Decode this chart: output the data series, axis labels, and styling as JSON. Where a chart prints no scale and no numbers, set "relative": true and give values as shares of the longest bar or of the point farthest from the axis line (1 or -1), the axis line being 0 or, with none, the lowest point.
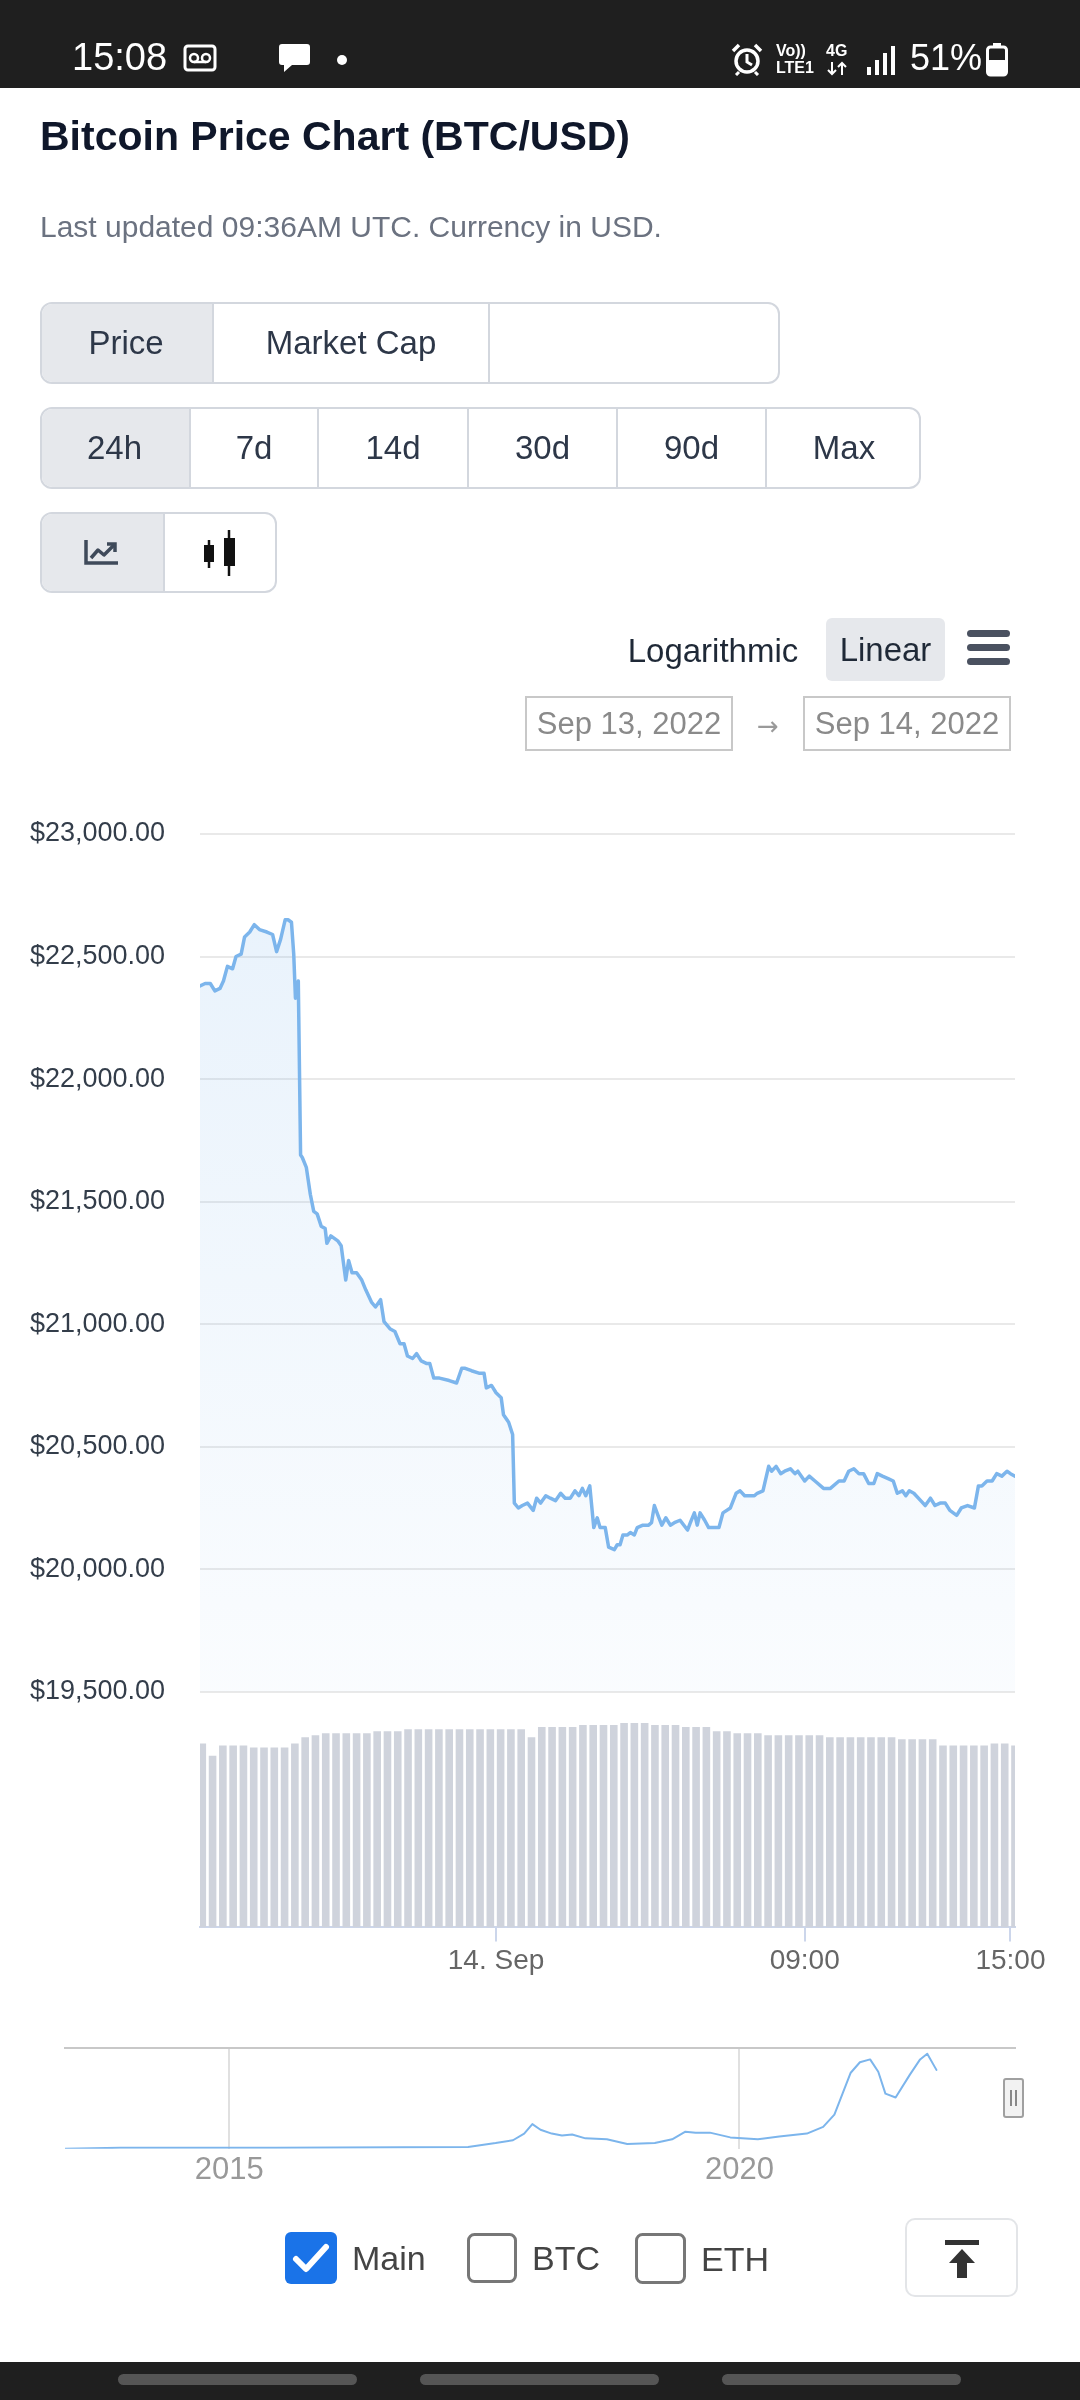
{
  "chart_data": [
    {
      "type": "other",
      "annotations": [
        "15:08",
        "Vo))",
        "LTE1",
        "4G",
        "51%"
      ]
    },
    {
      "type": "area",
      "title": "Bitcoin Price Chart (BTC/USD)",
      "subtitle": "Last updated 09:36AM UTC. Currency in USD.",
      "annotations": [
        "Price",
        "Market Cap",
        "24h",
        "7d",
        "14d",
        "30d",
        "90d",
        "Max",
        "Logarithmic",
        "Linear",
        "Sep 13, 2022",
        "→",
        "Sep 14, 2022"
      ],
      "x": [
        "2022-09-13T15:22",
        "2022-09-13T15:31",
        "2022-09-13T15:40",
        "2022-09-13T15:48",
        "2022-09-13T15:57",
        "2022-09-13T16:03",
        "2022-09-13T16:10",
        "2022-09-13T16:19",
        "2022-09-13T16:25",
        "2022-09-13T16:34",
        "2022-09-13T16:40",
        "2022-09-13T16:49",
        "2022-09-13T16:57",
        "2022-09-13T17:06",
        "2022-09-13T17:19",
        "2022-09-13T17:29",
        "2022-09-13T17:36",
        "2022-09-13T17:43",
        "2022-09-13T17:51",
        "2022-09-13T17:56",
        "2022-09-13T18:02",
        "2022-09-13T18:06",
        "2022-09-13T18:09",
        "2022-09-13T18:14",
        "2022-09-13T18:18",
        "2022-09-13T18:21",
        "2022-09-13T18:28",
        "2022-09-13T18:35",
        "2022-09-13T18:41",
        "2022-09-13T18:47",
        "2022-09-13T18:54",
        "2022-09-13T19:01",
        "2022-09-13T19:04",
        "2022-09-13T19:11",
        "2022-09-13T19:23",
        "2022-09-13T19:29",
        "2022-09-13T19:37",
        "2022-09-13T19:42",
        "2022-09-13T19:48",
        "2022-09-13T19:56",
        "2022-09-13T20:05",
        "2022-09-13T20:12",
        "2022-09-13T20:22",
        "2022-09-13T20:29",
        "2022-09-13T20:38",
        "2022-09-13T20:44",
        "2022-09-13T20:55",
        "2022-09-13T21:03",
        "2022-09-13T21:12",
        "2022-09-13T21:19",
        "2022-09-13T21:25",
        "2022-09-13T21:34",
        "2022-09-13T21:41",
        "2022-09-13T21:49",
        "2022-09-13T21:58",
        "2022-09-13T22:04",
        "2022-09-13T22:11",
        "2022-09-13T22:21",
        "2022-09-13T22:38",
        "2022-09-13T22:51",
        "2022-09-13T23:00",
        "2022-09-13T23:06",
        "2022-09-13T23:17",
        "2022-09-13T23:30",
        "2022-09-13T23:39",
        "2022-09-13T23:43",
        "2022-09-13T23:52",
        "2022-09-14T00:00",
        "2022-09-14T00:09",
        "2022-09-14T00:13",
        "2022-09-14T00:22",
        "2022-09-14T00:29",
        "2022-09-14T00:32",
        "2022-09-14T00:39",
        "2022-09-14T00:46",
        "2022-09-14T00:55",
        "2022-09-14T01:05",
        "2022-09-14T01:11",
        "2022-09-14T01:18",
        "2022-09-14T01:27",
        "2022-09-14T01:35",
        "2022-09-14T01:44",
        "2022-09-14T01:53",
        "2022-09-14T02:01",
        "2022-09-14T02:10",
        "2022-09-14T02:18",
        "2022-09-14T02:25",
        "2022-09-14T02:31",
        "2022-09-14T02:37",
        "2022-09-14T02:44",
        "2022-09-14T02:51",
        "2022-09-14T02:57",
        "2022-09-14T03:02",
        "2022-09-14T03:11",
        "2022-09-14T03:17",
        "2022-09-14T03:27",
        "2022-09-14T03:32",
        "2022-09-14T03:37",
        "2022-09-14T03:42",
        "2022-09-14T03:50",
        "2022-09-14T03:55",
        "2022-09-14T04:02",
        "2022-09-14T04:07",
        "2022-09-14T04:17",
        "2022-09-14T04:27",
        "2022-09-14T04:32",
        "2022-09-14T04:37",
        "2022-09-14T04:45",
        "2022-09-14T04:50",
        "2022-09-14T04:57",
        "2022-09-14T05:05",
        "2022-09-14T05:12",
        "2022-09-14T05:22",
        "2022-09-14T05:35",
        "2022-09-14T05:40",
        "2022-09-14T05:47",
        "2022-09-14T05:52",
        "2022-09-14T05:57",
        "2022-09-14T06:05",
        "2022-09-14T06:12",
        "2022-09-14T06:30",
        "2022-09-14T06:37",
        "2022-09-14T06:50",
        "2022-09-14T07:00",
        "2022-09-14T07:07",
        "2022-09-14T07:15",
        "2022-09-14T07:32",
        "2022-09-14T07:37",
        "2022-09-14T07:47",
        "2022-09-14T07:57",
        "2022-09-14T08:02",
        "2022-09-14T08:10",
        "2022-09-14T08:18",
        "2022-09-14T08:25",
        "2022-09-14T08:35",
        "2022-09-14T08:43",
        "2022-09-14T08:48",
        "2022-09-14T09:00",
        "2022-09-14T09:08",
        "2022-09-14T09:18",
        "2022-09-14T09:33",
        "2022-09-14T09:45",
        "2022-09-14T10:00",
        "2022-09-14T10:09",
        "2022-09-14T10:17",
        "2022-09-14T10:26",
        "2022-09-14T10:35",
        "2022-09-14T10:43",
        "2022-09-14T10:52",
        "2022-09-14T11:01",
        "2022-09-14T11:07",
        "2022-09-14T11:16",
        "2022-09-14T11:26",
        "2022-09-14T11:35",
        "2022-09-14T11:42",
        "2022-09-14T11:51",
        "2022-09-14T11:57",
        "2022-09-14T12:03",
        "2022-09-14T12:11",
        "2022-09-14T12:23",
        "2022-09-14T12:31",
        "2022-09-14T12:40",
        "2022-09-14T12:48",
        "2022-09-14T12:57",
        "2022-09-14T13:06",
        "2022-09-14T13:14",
        "2022-09-14T13:26",
        "2022-09-14T13:34",
        "2022-09-14T13:45",
        "2022-09-14T13:57",
        "2022-09-14T14:04",
        "2022-09-14T14:10",
        "2022-09-14T14:19",
        "2022-09-14T14:28",
        "2022-09-14T14:36",
        "2022-09-14T14:45",
        "2022-09-14T14:54",
        "2022-09-14T15:00",
        "2022-09-14T15:08"
      ],
      "values": [
        22380,
        22390,
        22390,
        22360,
        22370,
        22400,
        22460,
        22450,
        22500,
        22510,
        22580,
        22600,
        22630,
        22610,
        22600,
        22590,
        22520,
        22570,
        22650,
        22650,
        22640,
        22510,
        22330,
        22400,
        21690,
        21680,
        21640,
        21530,
        21460,
        21450,
        21400,
        21390,
        21330,
        21360,
        21340,
        21320,
        21180,
        21260,
        21210,
        21210,
        21180,
        21140,
        21090,
        21070,
        21100,
        21010,
        20980,
        20970,
        20920,
        20920,
        20870,
        20860,
        20880,
        20850,
        20840,
        20840,
        20780,
        20780,
        20770,
        20760,
        20820,
        20820,
        20810,
        20800,
        20800,
        20740,
        20750,
        20720,
        20700,
        20630,
        20600,
        20550,
        20270,
        20250,
        20260,
        20270,
        20240,
        20290,
        20270,
        20300,
        20290,
        20280,
        20310,
        20290,
        20290,
        20320,
        20300,
        20330,
        20300,
        20340,
        20170,
        20210,
        20170,
        20170,
        20090,
        20080,
        20100,
        20100,
        20140,
        20140,
        20150,
        20140,
        20170,
        20180,
        20180,
        20190,
        20260,
        20210,
        20180,
        20210,
        20180,
        20190,
        20200,
        20160,
        20190,
        20230,
        20180,
        20230,
        20200,
        20170,
        20170,
        20230,
        20250,
        20310,
        20320,
        20300,
        20300,
        20310,
        20320,
        20420,
        20400,
        20420,
        20390,
        20400,
        20410,
        20390,
        20400,
        20360,
        20380,
        20360,
        20330,
        20330,
        20360,
        20360,
        20400,
        20410,
        20390,
        20390,
        20350,
        20350,
        20390,
        20380,
        20370,
        20360,
        20310,
        20320,
        20300,
        20320,
        20310,
        20280,
        20260,
        20290,
        20260,
        20270,
        20270,
        20240,
        20220,
        20250,
        20260,
        20250,
        20340,
        20340,
        20360,
        20360,
        20390,
        20380,
        20400,
        20390,
        20380
      ],
      "color": "#7cb5ec",
      "xlim": [
        "2022-09-13T15:22",
        "2022-09-14T15:08"
      ],
      "ylim": [
        19500,
        23000
      ],
      "yticks": [
        {
          "value": 19500,
          "label": "$19,500.00"
        },
        {
          "value": 20000,
          "label": "$20,000.00"
        },
        {
          "value": 20500,
          "label": "$20,500.00"
        },
        {
          "value": 21000,
          "label": "$21,000.00"
        },
        {
          "value": 21500,
          "label": "$21,500.00"
        },
        {
          "value": 22000,
          "label": "$22,000.00"
        },
        {
          "value": 22500,
          "label": "$22,500.00"
        },
        {
          "value": 23000,
          "label": "$23,000.00"
        }
      ],
      "grid": "y",
      "tick_labels": "y"
    },
    {
      "type": "bar",
      "relative": true,
      "color": "#cfd3dc",
      "tick_labels": "x",
      "x": [
        "2022-09-13T15:26",
        "2022-09-13T15:44",
        "2022-09-13T16:02",
        "2022-09-13T16:20",
        "2022-09-13T16:38",
        "2022-09-13T16:56",
        "2022-09-13T17:14",
        "2022-09-13T17:32",
        "2022-09-13T17:50",
        "2022-09-13T18:08",
        "2022-09-13T18:26",
        "2022-09-13T18:44",
        "2022-09-13T19:02",
        "2022-09-13T19:20",
        "2022-09-13T19:38",
        "2022-09-13T19:56",
        "2022-09-13T20:14",
        "2022-09-13T20:32",
        "2022-09-13T20:50",
        "2022-09-13T21:08",
        "2022-09-13T21:26",
        "2022-09-13T21:44",
        "2022-09-13T22:02",
        "2022-09-13T22:20",
        "2022-09-13T22:38",
        "2022-09-13T22:56",
        "2022-09-13T23:14",
        "2022-09-13T23:32",
        "2022-09-13T23:50",
        "2022-09-14T00:08",
        "2022-09-14T00:26",
        "2022-09-14T00:44",
        "2022-09-14T01:02",
        "2022-09-14T01:20",
        "2022-09-14T01:38",
        "2022-09-14T01:56",
        "2022-09-14T02:14",
        "2022-09-14T02:32",
        "2022-09-14T02:50",
        "2022-09-14T03:08",
        "2022-09-14T03:26",
        "2022-09-14T03:44",
        "2022-09-14T04:02",
        "2022-09-14T04:20",
        "2022-09-14T04:38",
        "2022-09-14T04:56",
        "2022-09-14T05:14",
        "2022-09-14T05:32",
        "2022-09-14T05:50",
        "2022-09-14T06:08",
        "2022-09-14T06:26",
        "2022-09-14T06:44",
        "2022-09-14T07:02",
        "2022-09-14T07:20",
        "2022-09-14T07:38",
        "2022-09-14T07:56",
        "2022-09-14T08:14",
        "2022-09-14T08:32",
        "2022-09-14T08:50",
        "2022-09-14T09:08",
        "2022-09-14T09:26",
        "2022-09-14T09:44",
        "2022-09-14T10:02",
        "2022-09-14T10:20",
        "2022-09-14T10:38",
        "2022-09-14T10:56",
        "2022-09-14T11:14",
        "2022-09-14T11:32",
        "2022-09-14T11:50",
        "2022-09-14T12:08",
        "2022-09-14T12:26",
        "2022-09-14T12:44",
        "2022-09-14T13:02",
        "2022-09-14T13:20",
        "2022-09-14T13:38",
        "2022-09-14T13:56",
        "2022-09-14T14:14",
        "2022-09-14T14:32",
        "2022-09-14T14:50",
        "2022-09-14T15:08"
      ],
      "values": [
        0.9,
        0.84,
        0.89,
        0.89,
        0.89,
        0.88,
        0.88,
        0.88,
        0.88,
        0.9,
        0.93,
        0.94,
        0.95,
        0.95,
        0.95,
        0.95,
        0.95,
        0.96,
        0.96,
        0.96,
        0.97,
        0.97,
        0.97,
        0.97,
        0.97,
        0.97,
        0.97,
        0.97,
        0.97,
        0.97,
        0.97,
        0.97,
        0.93,
        0.98,
        0.98,
        0.98,
        0.98,
        0.99,
        0.99,
        0.99,
        0.99,
        1,
        1,
        1,
        0.99,
        0.99,
        0.99,
        0.98,
        0.98,
        0.98,
        0.96,
        0.96,
        0.95,
        0.95,
        0.95,
        0.94,
        0.94,
        0.94,
        0.94,
        0.94,
        0.94,
        0.93,
        0.93,
        0.93,
        0.93,
        0.93,
        0.93,
        0.93,
        0.92,
        0.92,
        0.92,
        0.92,
        0.89,
        0.89,
        0.89,
        0.89,
        0.89,
        0.9,
        0.9,
        0.89
      ],
      "xlim": [
        "2022-09-13T15:22",
        "2022-09-14T15:08"
      ],
      "xticks": [
        {
          "value": "2022-09-14T00:00",
          "label": "14. Sep"
        },
        {
          "value": "2022-09-14T09:00",
          "label": "09:00"
        },
        {
          "value": "2022-09-14T15:00",
          "label": "15:00"
        }
      ]
    },
    {
      "type": "line",
      "relative": true,
      "color": "#7cb5ec",
      "grid": "x",
      "tick_labels": "x",
      "annotations": [
        "Main",
        "BTC",
        "ETH"
      ],
      "x": [
        2013.39,
        2013.93,
        2015.45,
        2017.34,
        2017.61,
        2017.78,
        2017.89,
        2017.97,
        2018.05,
        2018.16,
        2018.26,
        2018.36,
        2018.49,
        2018.7,
        2018.9,
        2019.17,
        2019.34,
        2019.47,
        2019.57,
        2019.71,
        2019.91,
        2020.18,
        2020.39,
        2020.66,
        2020.82,
        2020.93,
        2021.01,
        2021.09,
        2021.18,
        2021.28,
        2021.36,
        2021.43,
        2021.53,
        2021.67,
        2021.77,
        2021.84,
        2021.93
      ],
      "values": [
        0,
        0.01,
        0.01,
        0.02,
        0.06,
        0.09,
        0.16,
        0.26,
        0.2,
        0.16,
        0.14,
        0.15,
        0.11,
        0.1,
        0.05,
        0.06,
        0.1,
        0.18,
        0.17,
        0.17,
        0.12,
        0.1,
        0.13,
        0.16,
        0.23,
        0.36,
        0.58,
        0.8,
        0.91,
        0.94,
        0.81,
        0.58,
        0.54,
        0.78,
        0.94,
        1,
        0.83
      ],
      "xlim": [
        2013.39,
        2022.7
      ],
      "xticks": [
        2015,
        2020
      ]
    }
  ]
}
